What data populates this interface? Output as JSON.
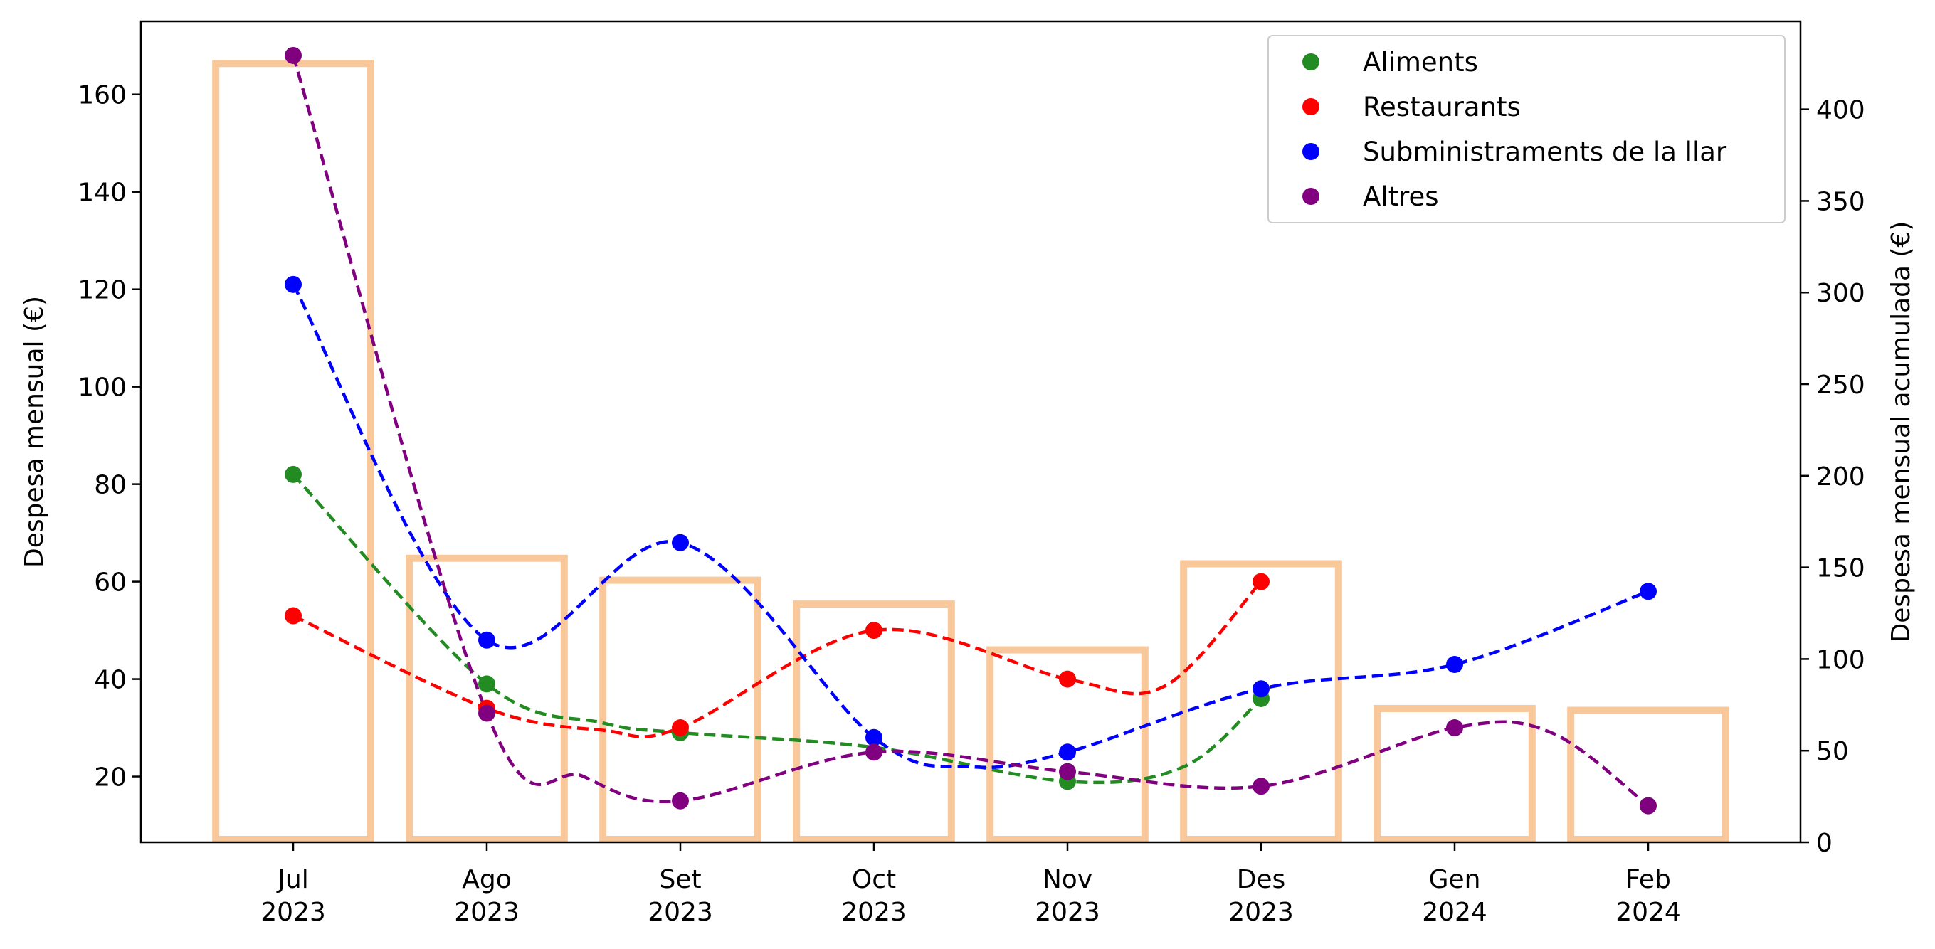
{
  "chart_data": {
    "type": "bar+line",
    "title": "",
    "x_ticks": [
      {
        "month": "Jul",
        "year": "2023"
      },
      {
        "month": "Ago",
        "year": "2023"
      },
      {
        "month": "Set",
        "year": "2023"
      },
      {
        "month": "Oct",
        "year": "2023"
      },
      {
        "month": "Nov",
        "year": "2023"
      },
      {
        "month": "Des",
        "year": "2023"
      },
      {
        "month": "Gen",
        "year": "2024"
      },
      {
        "month": "Feb",
        "year": "2024"
      }
    ],
    "ylabel_left": "Despesa mensual (€)",
    "ylabel_right": "Despesa mensual acumulada (€)",
    "ylim_left": [
      6.5,
      175
    ],
    "ylim_right": [
      0,
      448
    ],
    "yticks_left": [
      20,
      40,
      60,
      80,
      100,
      120,
      140,
      160
    ],
    "yticks_right": [
      0,
      50,
      100,
      150,
      200,
      250,
      300,
      350,
      400
    ],
    "bars_accumulated": [
      425,
      155,
      143,
      130,
      105,
      152,
      73,
      72
    ],
    "bar_color": "#f8c89a",
    "series": [
      {
        "name": "Aliments",
        "color": "#228b22",
        "values": [
          82,
          39,
          29,
          null,
          19,
          36,
          null,
          null
        ]
      },
      {
        "name": "Restaurants",
        "color": "#ff0000",
        "values": [
          53,
          34,
          30,
          50,
          40,
          60,
          null,
          null
        ]
      },
      {
        "name": "Subministraments de la llar",
        "color": "#0000ff",
        "values": [
          121,
          48,
          68,
          28,
          25,
          38,
          43,
          58
        ]
      },
      {
        "name": "Altres",
        "color": "#800080",
        "values": [
          168,
          33,
          15,
          25,
          21,
          18,
          30,
          14
        ]
      }
    ],
    "trend_lines": [
      {
        "series": "Aliments",
        "points": [
          [
            0,
            82
          ],
          [
            1,
            39
          ],
          [
            1.6,
            31
          ],
          [
            2,
            29
          ],
          [
            3,
            26
          ],
          [
            4,
            19
          ],
          [
            4.6,
            22
          ],
          [
            5,
            36
          ]
        ]
      },
      {
        "series": "Restaurants",
        "points": [
          [
            0,
            53
          ],
          [
            1,
            34
          ],
          [
            1.6,
            29.5
          ],
          [
            2,
            30
          ],
          [
            3,
            50
          ],
          [
            4,
            40
          ],
          [
            4.5,
            38.5
          ],
          [
            5,
            60
          ]
        ]
      },
      {
        "series": "Subministraments de la llar",
        "points": [
          [
            0,
            121
          ],
          [
            1,
            48
          ],
          [
            2,
            68
          ],
          [
            3,
            28
          ],
          [
            3.5,
            22
          ],
          [
            4,
            25
          ],
          [
            5,
            38
          ],
          [
            6,
            43
          ],
          [
            7,
            58
          ]
        ]
      },
      {
        "series": "Altres",
        "points": [
          [
            0,
            168
          ],
          [
            1,
            33
          ],
          [
            1.5,
            20
          ],
          [
            2,
            15
          ],
          [
            3,
            25
          ],
          [
            4,
            21
          ],
          [
            5,
            18
          ],
          [
            6,
            30
          ],
          [
            6.5,
            29
          ],
          [
            7,
            14
          ]
        ]
      }
    ],
    "legend_position": "top-right",
    "grid": false
  }
}
